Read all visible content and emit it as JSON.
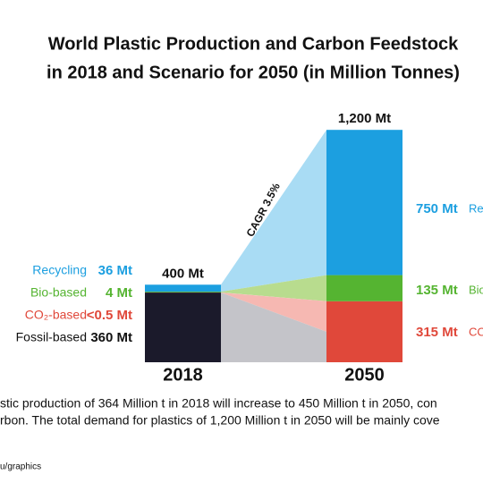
{
  "chart_data": {
    "type": "bar",
    "stacked": true,
    "title_lines": [
      "World Plastic Production and Carbon Feedstock",
      "in 2018 and Scenario for 2050 (in Million Tonnes)"
    ],
    "categories": [
      "2018",
      "2050"
    ],
    "totals": [
      400,
      1200
    ],
    "total_labels": [
      "400 Mt",
      "1,200 Mt"
    ],
    "series": [
      {
        "name": "Fossil-based",
        "color": "#1b1a2b",
        "values": [
          360,
          null
        ],
        "value_labels": [
          "360 Mt",
          null
        ]
      },
      {
        "name": "CO₂-based",
        "color": "#e0483a",
        "values": [
          0.5,
          315
        ],
        "value_labels": [
          "<0.5 Mt",
          "315 Mt"
        ],
        "right_label": "CO"
      },
      {
        "name": "Bio-based",
        "color": "#55b431",
        "values": [
          4,
          135
        ],
        "value_labels": [
          "4 Mt",
          "135 Mt"
        ],
        "right_label": "Bio"
      },
      {
        "name": "Recycling",
        "color": "#1c9fe0",
        "values": [
          36,
          750
        ],
        "value_labels": [
          "36 Mt",
          "750 Mt"
        ],
        "right_label": "Re"
      }
    ],
    "annotation": "CAGR 3.5%",
    "footnote_lines": [
      "stic production of 364 Million t in 2018 will increase to 450 Million t in 2050, con",
      "rbon. The total demand for plastics of 1,200 Million t in 2050 will be mainly cove"
    ],
    "source": "u/graphics"
  }
}
